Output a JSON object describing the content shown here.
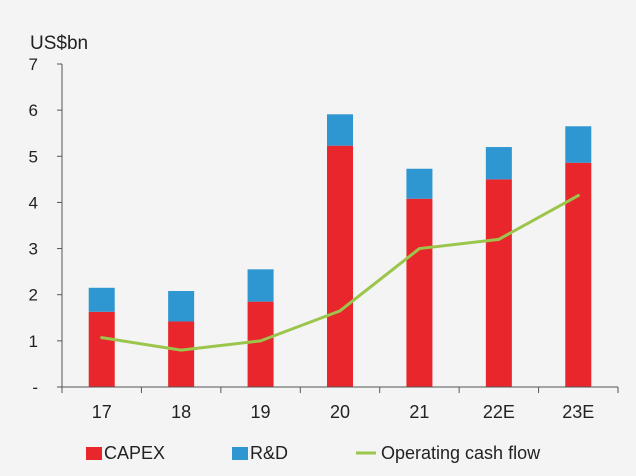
{
  "chart_data": {
    "type": "bar",
    "stacked": true,
    "unit_label": "US$bn",
    "categories": [
      "17",
      "18",
      "19",
      "20",
      "21",
      "22E",
      "23E"
    ],
    "y_ticks": [
      "-",
      "1",
      "2",
      "3",
      "4",
      "5",
      "6",
      "7"
    ],
    "ylim": [
      0,
      7
    ],
    "grid": false,
    "legend_position": "bottom",
    "series": [
      {
        "name": "CAPEX",
        "type": "bar",
        "color": "#e8262b",
        "values": [
          1.63,
          1.42,
          1.85,
          5.23,
          4.08,
          4.5,
          4.86
        ]
      },
      {
        "name": "R&D",
        "type": "bar",
        "color": "#2e96d1",
        "values": [
          0.52,
          0.66,
          0.7,
          0.68,
          0.65,
          0.7,
          0.79
        ]
      },
      {
        "name": "Operating cash flow",
        "type": "line",
        "color": "#9bc54b",
        "values": [
          1.07,
          0.8,
          1.0,
          1.65,
          3.0,
          3.2,
          4.15
        ]
      }
    ]
  }
}
